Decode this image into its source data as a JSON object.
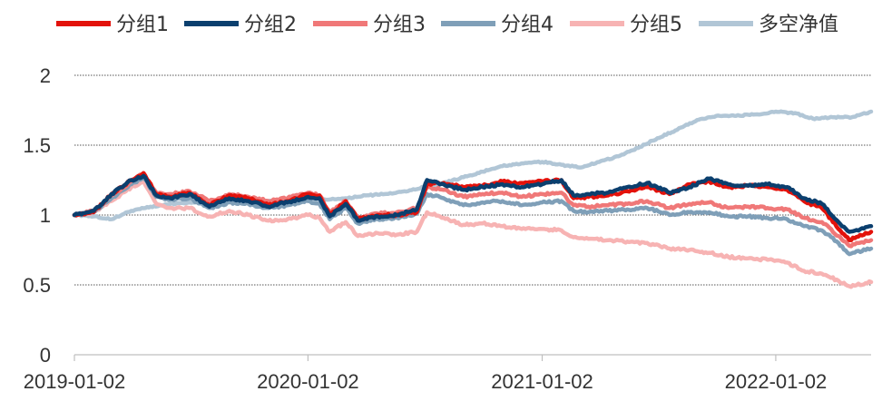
{
  "chart_data": {
    "type": "line",
    "title": "",
    "xlabel": "",
    "ylabel": "",
    "ylim": [
      0,
      2
    ],
    "y_ticks": [
      "0",
      "0.5",
      "1",
      "1.5",
      "2"
    ],
    "y_tick_values": [
      0,
      0.5,
      1,
      1.5,
      2
    ],
    "x_ticks": [
      "2019-01-02",
      "2020-01-02",
      "2021-01-02",
      "2022-01-02"
    ],
    "x_tick_values": [
      "2019-01-02",
      "2020-01-02",
      "2021-01-02",
      "2022-01-02"
    ],
    "x_range": [
      "2019-01-02",
      "2022-05-31"
    ],
    "grid": true,
    "legend_position": "top",
    "series": [
      {
        "name": "分组1",
        "color": "#e3120b",
        "points": [
          [
            "2019-01-02",
            1.0
          ],
          [
            "2019-02-01",
            1.02
          ],
          [
            "2019-03-01",
            1.15
          ],
          [
            "2019-04-01",
            1.25
          ],
          [
            "2019-04-20",
            1.3
          ],
          [
            "2019-05-10",
            1.15
          ],
          [
            "2019-06-01",
            1.13
          ],
          [
            "2019-07-01",
            1.16
          ],
          [
            "2019-08-01",
            1.07
          ],
          [
            "2019-09-01",
            1.14
          ],
          [
            "2019-10-01",
            1.12
          ],
          [
            "2019-11-01",
            1.07
          ],
          [
            "2019-12-01",
            1.1
          ],
          [
            "2020-01-02",
            1.15
          ],
          [
            "2020-01-20",
            1.14
          ],
          [
            "2020-02-05",
            1.0
          ],
          [
            "2020-03-01",
            1.1
          ],
          [
            "2020-03-20",
            0.97
          ],
          [
            "2020-04-20",
            1.0
          ],
          [
            "2020-05-20",
            1.0
          ],
          [
            "2020-06-20",
            1.02
          ],
          [
            "2020-07-06",
            1.22
          ],
          [
            "2020-08-01",
            1.23
          ],
          [
            "2020-09-01",
            1.2
          ],
          [
            "2020-10-01",
            1.21
          ],
          [
            "2020-11-01",
            1.24
          ],
          [
            "2020-12-01",
            1.23
          ],
          [
            "2021-01-02",
            1.24
          ],
          [
            "2021-02-01",
            1.25
          ],
          [
            "2021-02-20",
            1.12
          ],
          [
            "2021-03-15",
            1.13
          ],
          [
            "2021-04-15",
            1.14
          ],
          [
            "2021-05-15",
            1.17
          ],
          [
            "2021-06-15",
            1.2
          ],
          [
            "2021-07-20",
            1.15
          ],
          [
            "2021-08-20",
            1.22
          ],
          [
            "2021-09-20",
            1.24
          ],
          [
            "2021-10-20",
            1.2
          ],
          [
            "2021-11-20",
            1.21
          ],
          [
            "2021-12-20",
            1.2
          ],
          [
            "2022-01-20",
            1.18
          ],
          [
            "2022-02-15",
            1.1
          ],
          [
            "2022-03-15",
            1.05
          ],
          [
            "2022-04-10",
            0.9
          ],
          [
            "2022-04-27",
            0.82
          ],
          [
            "2022-05-31",
            0.88
          ]
        ]
      },
      {
        "name": "分组2",
        "color": "#0b3f6e",
        "points": [
          [
            "2019-01-02",
            1.0
          ],
          [
            "2019-02-01",
            1.03
          ],
          [
            "2019-03-01",
            1.15
          ],
          [
            "2019-04-01",
            1.25
          ],
          [
            "2019-04-20",
            1.28
          ],
          [
            "2019-05-10",
            1.14
          ],
          [
            "2019-06-01",
            1.12
          ],
          [
            "2019-07-01",
            1.15
          ],
          [
            "2019-08-01",
            1.06
          ],
          [
            "2019-09-01",
            1.12
          ],
          [
            "2019-10-01",
            1.1
          ],
          [
            "2019-11-01",
            1.06
          ],
          [
            "2019-12-01",
            1.09
          ],
          [
            "2020-01-02",
            1.13
          ],
          [
            "2020-01-20",
            1.12
          ],
          [
            "2020-02-05",
            0.99
          ],
          [
            "2020-03-01",
            1.08
          ],
          [
            "2020-03-20",
            0.96
          ],
          [
            "2020-04-20",
            0.99
          ],
          [
            "2020-05-20",
            1.0
          ],
          [
            "2020-06-20",
            1.04
          ],
          [
            "2020-07-06",
            1.25
          ],
          [
            "2020-08-01",
            1.22
          ],
          [
            "2020-09-01",
            1.18
          ],
          [
            "2020-10-01",
            1.2
          ],
          [
            "2020-11-01",
            1.22
          ],
          [
            "2020-12-01",
            1.2
          ],
          [
            "2021-01-02",
            1.22
          ],
          [
            "2021-02-01",
            1.25
          ],
          [
            "2021-02-20",
            1.14
          ],
          [
            "2021-03-15",
            1.15
          ],
          [
            "2021-04-15",
            1.16
          ],
          [
            "2021-05-15",
            1.2
          ],
          [
            "2021-06-15",
            1.23
          ],
          [
            "2021-07-20",
            1.16
          ],
          [
            "2021-08-20",
            1.2
          ],
          [
            "2021-09-20",
            1.26
          ],
          [
            "2021-10-20",
            1.22
          ],
          [
            "2021-11-20",
            1.21
          ],
          [
            "2021-12-20",
            1.22
          ],
          [
            "2022-01-20",
            1.2
          ],
          [
            "2022-02-15",
            1.12
          ],
          [
            "2022-03-15",
            1.08
          ],
          [
            "2022-04-10",
            0.95
          ],
          [
            "2022-04-27",
            0.88
          ],
          [
            "2022-05-31",
            0.92
          ]
        ]
      },
      {
        "name": "分组3",
        "color": "#f07878",
        "points": [
          [
            "2019-01-02",
            1.0
          ],
          [
            "2019-02-01",
            1.03
          ],
          [
            "2019-03-01",
            1.14
          ],
          [
            "2019-04-01",
            1.24
          ],
          [
            "2019-04-20",
            1.3
          ],
          [
            "2019-05-10",
            1.16
          ],
          [
            "2019-06-01",
            1.15
          ],
          [
            "2019-07-01",
            1.17
          ],
          [
            "2019-08-01",
            1.1
          ],
          [
            "2019-09-01",
            1.15
          ],
          [
            "2019-10-01",
            1.13
          ],
          [
            "2019-11-01",
            1.1
          ],
          [
            "2019-12-01",
            1.12
          ],
          [
            "2020-01-02",
            1.16
          ],
          [
            "2020-01-20",
            1.14
          ],
          [
            "2020-02-05",
            1.02
          ],
          [
            "2020-03-01",
            1.1
          ],
          [
            "2020-03-20",
            0.98
          ],
          [
            "2020-04-20",
            1.01
          ],
          [
            "2020-05-20",
            1.02
          ],
          [
            "2020-06-20",
            1.05
          ],
          [
            "2020-07-06",
            1.2
          ],
          [
            "2020-08-01",
            1.18
          ],
          [
            "2020-09-01",
            1.13
          ],
          [
            "2020-10-01",
            1.15
          ],
          [
            "2020-11-01",
            1.16
          ],
          [
            "2020-12-01",
            1.13
          ],
          [
            "2021-01-02",
            1.15
          ],
          [
            "2021-02-01",
            1.16
          ],
          [
            "2021-02-20",
            1.07
          ],
          [
            "2021-03-15",
            1.06
          ],
          [
            "2021-04-15",
            1.07
          ],
          [
            "2021-05-15",
            1.08
          ],
          [
            "2021-06-15",
            1.1
          ],
          [
            "2021-07-20",
            1.05
          ],
          [
            "2021-08-20",
            1.08
          ],
          [
            "2021-09-20",
            1.09
          ],
          [
            "2021-10-20",
            1.05
          ],
          [
            "2021-11-20",
            1.06
          ],
          [
            "2021-12-20",
            1.05
          ],
          [
            "2022-01-20",
            1.04
          ],
          [
            "2022-02-15",
            0.98
          ],
          [
            "2022-03-15",
            0.95
          ],
          [
            "2022-04-10",
            0.85
          ],
          [
            "2022-04-27",
            0.78
          ],
          [
            "2022-05-31",
            0.82
          ]
        ]
      },
      {
        "name": "分组4",
        "color": "#7f9fb8",
        "points": [
          [
            "2019-01-02",
            1.0
          ],
          [
            "2019-02-01",
            1.02
          ],
          [
            "2019-03-01",
            1.12
          ],
          [
            "2019-04-01",
            1.22
          ],
          [
            "2019-04-20",
            1.27
          ],
          [
            "2019-05-10",
            1.13
          ],
          [
            "2019-06-01",
            1.11
          ],
          [
            "2019-07-01",
            1.12
          ],
          [
            "2019-08-01",
            1.05
          ],
          [
            "2019-09-01",
            1.09
          ],
          [
            "2019-10-01",
            1.08
          ],
          [
            "2019-11-01",
            1.05
          ],
          [
            "2019-12-01",
            1.07
          ],
          [
            "2020-01-02",
            1.1
          ],
          [
            "2020-01-20",
            1.08
          ],
          [
            "2020-02-05",
            0.97
          ],
          [
            "2020-03-01",
            1.05
          ],
          [
            "2020-03-20",
            0.94
          ],
          [
            "2020-04-20",
            0.97
          ],
          [
            "2020-05-20",
            0.98
          ],
          [
            "2020-06-20",
            1.01
          ],
          [
            "2020-07-06",
            1.15
          ],
          [
            "2020-08-01",
            1.12
          ],
          [
            "2020-09-01",
            1.07
          ],
          [
            "2020-10-01",
            1.09
          ],
          [
            "2020-11-01",
            1.1
          ],
          [
            "2020-12-01",
            1.07
          ],
          [
            "2021-01-02",
            1.09
          ],
          [
            "2021-02-01",
            1.1
          ],
          [
            "2021-02-20",
            1.03
          ],
          [
            "2021-03-15",
            1.02
          ],
          [
            "2021-04-15",
            1.03
          ],
          [
            "2021-05-15",
            1.04
          ],
          [
            "2021-06-15",
            1.05
          ],
          [
            "2021-07-20",
            1.0
          ],
          [
            "2021-08-20",
            1.02
          ],
          [
            "2021-09-20",
            1.02
          ],
          [
            "2021-10-20",
            0.99
          ],
          [
            "2021-11-20",
            0.99
          ],
          [
            "2021-12-20",
            0.98
          ],
          [
            "2022-01-20",
            0.97
          ],
          [
            "2022-02-15",
            0.92
          ],
          [
            "2022-03-15",
            0.89
          ],
          [
            "2022-04-10",
            0.8
          ],
          [
            "2022-04-27",
            0.72
          ],
          [
            "2022-05-31",
            0.76
          ]
        ]
      },
      {
        "name": "分组5",
        "color": "#f7b3b3",
        "points": [
          [
            "2019-01-02",
            1.0
          ],
          [
            "2019-02-01",
            1.02
          ],
          [
            "2019-03-01",
            1.1
          ],
          [
            "2019-04-01",
            1.2
          ],
          [
            "2019-04-20",
            1.24
          ],
          [
            "2019-05-10",
            1.08
          ],
          [
            "2019-06-01",
            1.05
          ],
          [
            "2019-07-01",
            1.05
          ],
          [
            "2019-08-01",
            0.99
          ],
          [
            "2019-09-01",
            1.03
          ],
          [
            "2019-10-01",
            1.0
          ],
          [
            "2019-11-01",
            0.96
          ],
          [
            "2019-12-01",
            0.97
          ],
          [
            "2020-01-02",
            1.0
          ],
          [
            "2020-01-20",
            0.98
          ],
          [
            "2020-02-05",
            0.88
          ],
          [
            "2020-03-01",
            0.95
          ],
          [
            "2020-03-20",
            0.85
          ],
          [
            "2020-04-20",
            0.87
          ],
          [
            "2020-05-20",
            0.86
          ],
          [
            "2020-06-20",
            0.88
          ],
          [
            "2020-07-06",
            1.02
          ],
          [
            "2020-08-01",
            0.98
          ],
          [
            "2020-09-01",
            0.93
          ],
          [
            "2020-10-01",
            0.94
          ],
          [
            "2020-11-01",
            0.92
          ],
          [
            "2020-12-01",
            0.9
          ],
          [
            "2021-01-02",
            0.9
          ],
          [
            "2021-02-01",
            0.89
          ],
          [
            "2021-02-20",
            0.84
          ],
          [
            "2021-03-15",
            0.83
          ],
          [
            "2021-04-15",
            0.82
          ],
          [
            "2021-05-15",
            0.81
          ],
          [
            "2021-06-15",
            0.8
          ],
          [
            "2021-07-20",
            0.76
          ],
          [
            "2021-08-20",
            0.75
          ],
          [
            "2021-09-20",
            0.73
          ],
          [
            "2021-10-20",
            0.7
          ],
          [
            "2021-11-20",
            0.69
          ],
          [
            "2021-12-20",
            0.68
          ],
          [
            "2022-01-20",
            0.66
          ],
          [
            "2022-02-15",
            0.6
          ],
          [
            "2022-03-15",
            0.58
          ],
          [
            "2022-04-10",
            0.53
          ],
          [
            "2022-04-27",
            0.49
          ],
          [
            "2022-05-31",
            0.52
          ]
        ]
      },
      {
        "name": "多空净值",
        "color": "#b1c6d6",
        "points": [
          [
            "2019-01-02",
            1.0
          ],
          [
            "2019-02-01",
            0.99
          ],
          [
            "2019-03-01",
            0.97
          ],
          [
            "2019-04-01",
            1.03
          ],
          [
            "2019-05-01",
            1.06
          ],
          [
            "2019-06-01",
            1.08
          ],
          [
            "2019-07-01",
            1.09
          ],
          [
            "2019-08-01",
            1.09
          ],
          [
            "2019-09-01",
            1.1
          ],
          [
            "2019-10-01",
            1.1
          ],
          [
            "2019-11-01",
            1.1
          ],
          [
            "2019-12-01",
            1.11
          ],
          [
            "2020-01-02",
            1.12
          ],
          [
            "2020-02-01",
            1.11
          ],
          [
            "2020-03-01",
            1.12
          ],
          [
            "2020-04-01",
            1.14
          ],
          [
            "2020-05-01",
            1.15
          ],
          [
            "2020-06-01",
            1.17
          ],
          [
            "2020-07-01",
            1.2
          ],
          [
            "2020-08-01",
            1.23
          ],
          [
            "2020-09-01",
            1.27
          ],
          [
            "2020-10-01",
            1.31
          ],
          [
            "2020-11-01",
            1.35
          ],
          [
            "2020-12-01",
            1.37
          ],
          [
            "2021-01-02",
            1.38
          ],
          [
            "2021-02-01",
            1.36
          ],
          [
            "2021-03-01",
            1.34
          ],
          [
            "2021-04-01",
            1.38
          ],
          [
            "2021-05-01",
            1.42
          ],
          [
            "2021-06-01",
            1.48
          ],
          [
            "2021-07-01",
            1.55
          ],
          [
            "2021-08-01",
            1.61
          ],
          [
            "2021-09-01",
            1.68
          ],
          [
            "2021-10-01",
            1.71
          ],
          [
            "2021-11-01",
            1.71
          ],
          [
            "2021-12-01",
            1.72
          ],
          [
            "2022-01-02",
            1.74
          ],
          [
            "2022-02-01",
            1.73
          ],
          [
            "2022-03-01",
            1.69
          ],
          [
            "2022-04-01",
            1.7
          ],
          [
            "2022-05-01",
            1.7
          ],
          [
            "2022-05-31",
            1.74
          ]
        ]
      }
    ]
  }
}
